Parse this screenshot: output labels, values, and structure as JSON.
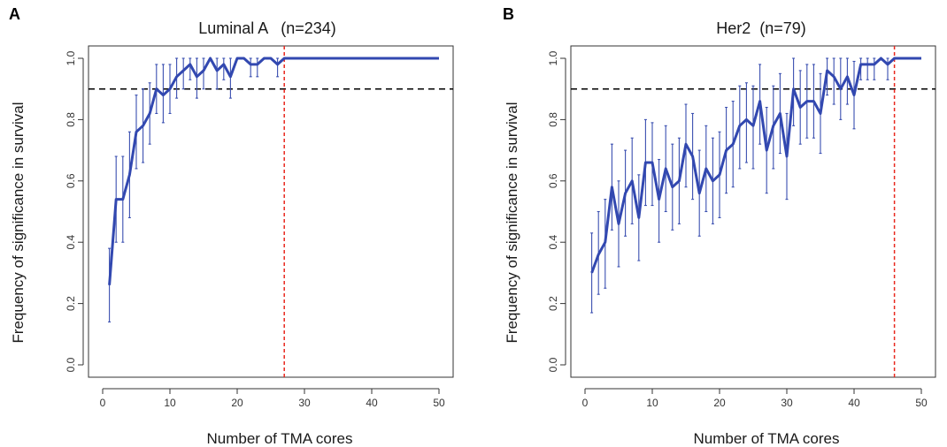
{
  "chart_data": [
    {
      "type": "line",
      "panel_label": "A",
      "title": "Luminal A   (n=234)",
      "xlabel": "Number of TMA cores",
      "ylabel": "Frequency of significance in survival",
      "xlim": [
        0,
        50
      ],
      "ylim": [
        0,
        1.0
      ],
      "xticks": [
        0,
        10,
        20,
        30,
        40,
        50
      ],
      "yticks": [
        "0.0",
        "0.2",
        "0.4",
        "0.6",
        "0.8",
        "1.0"
      ],
      "grid": false,
      "hline": 0.9,
      "vline": 27,
      "line_color": "#3248b0",
      "x": [
        1,
        2,
        3,
        4,
        5,
        6,
        7,
        8,
        9,
        10,
        11,
        12,
        13,
        14,
        15,
        16,
        17,
        18,
        19,
        20,
        21,
        22,
        23,
        24,
        25,
        26,
        27,
        28,
        29,
        30,
        31,
        32,
        33,
        34,
        35,
        36,
        37,
        38,
        39,
        40,
        41,
        42,
        43,
        44,
        45,
        46,
        47,
        48,
        49,
        50
      ],
      "values": [
        0.26,
        0.54,
        0.54,
        0.62,
        0.76,
        0.78,
        0.82,
        0.9,
        0.88,
        0.9,
        0.94,
        0.96,
        0.98,
        0.94,
        0.96,
        1.0,
        0.96,
        0.98,
        0.94,
        1.0,
        1.0,
        0.98,
        0.98,
        1.0,
        1.0,
        0.98,
        1.0,
        1.0,
        1.0,
        1.0,
        1.0,
        1.0,
        1.0,
        1.0,
        1.0,
        1.0,
        1.0,
        1.0,
        1.0,
        1.0,
        1.0,
        1.0,
        1.0,
        1.0,
        1.0,
        1.0,
        1.0,
        1.0,
        1.0,
        1.0
      ],
      "error_bars": [
        [
          1,
          0.14,
          0.38
        ],
        [
          2,
          0.4,
          0.68
        ],
        [
          3,
          0.4,
          0.68
        ],
        [
          4,
          0.48,
          0.76
        ],
        [
          5,
          0.64,
          0.88
        ],
        [
          6,
          0.66,
          0.9
        ],
        [
          7,
          0.72,
          0.92
        ],
        [
          8,
          0.82,
          0.98
        ],
        [
          9,
          0.79,
          0.98
        ],
        [
          10,
          0.82,
          0.98
        ],
        [
          11,
          0.87,
          1.0
        ],
        [
          12,
          0.9,
          1.0
        ],
        [
          13,
          0.93,
          1.0
        ],
        [
          14,
          0.87,
          1.0
        ],
        [
          15,
          0.9,
          1.0
        ],
        [
          17,
          0.9,
          1.0
        ],
        [
          18,
          0.93,
          1.0
        ],
        [
          19,
          0.87,
          1.0
        ],
        [
          22,
          0.94,
          1.0
        ],
        [
          23,
          0.94,
          1.0
        ],
        [
          26,
          0.94,
          1.0
        ]
      ]
    },
    {
      "type": "line",
      "panel_label": "B",
      "title": "Her2  (n=79)",
      "xlabel": "Number of TMA cores",
      "ylabel": "Frequency of significance in survival",
      "xlim": [
        0,
        50
      ],
      "ylim": [
        0,
        1.0
      ],
      "xticks": [
        0,
        10,
        20,
        30,
        40,
        50
      ],
      "yticks": [
        "0.0",
        "0.2",
        "0.4",
        "0.6",
        "0.8",
        "1.0"
      ],
      "grid": false,
      "hline": 0.9,
      "vline": 46,
      "line_color": "#3248b0",
      "x": [
        1,
        2,
        3,
        4,
        5,
        6,
        7,
        8,
        9,
        10,
        11,
        12,
        13,
        14,
        15,
        16,
        17,
        18,
        19,
        20,
        21,
        22,
        23,
        24,
        25,
        26,
        27,
        28,
        29,
        30,
        31,
        32,
        33,
        34,
        35,
        36,
        37,
        38,
        39,
        40,
        41,
        42,
        43,
        44,
        45,
        46,
        47,
        48,
        49,
        50
      ],
      "values": [
        0.3,
        0.36,
        0.4,
        0.58,
        0.46,
        0.56,
        0.6,
        0.48,
        0.66,
        0.66,
        0.54,
        0.64,
        0.58,
        0.6,
        0.72,
        0.68,
        0.56,
        0.64,
        0.6,
        0.62,
        0.7,
        0.72,
        0.78,
        0.8,
        0.78,
        0.86,
        0.7,
        0.78,
        0.82,
        0.68,
        0.9,
        0.84,
        0.86,
        0.86,
        0.82,
        0.96,
        0.94,
        0.9,
        0.94,
        0.88,
        0.98,
        0.98,
        0.98,
        1.0,
        0.98,
        1.0,
        1.0,
        1.0,
        1.0,
        1.0
      ],
      "error_bars": [
        [
          1,
          0.17,
          0.43
        ],
        [
          2,
          0.23,
          0.5
        ],
        [
          3,
          0.25,
          0.54
        ],
        [
          4,
          0.44,
          0.72
        ],
        [
          5,
          0.32,
          0.6
        ],
        [
          6,
          0.42,
          0.7
        ],
        [
          7,
          0.46,
          0.74
        ],
        [
          8,
          0.34,
          0.62
        ],
        [
          9,
          0.52,
          0.8
        ],
        [
          10,
          0.52,
          0.79
        ],
        [
          11,
          0.4,
          0.67
        ],
        [
          12,
          0.5,
          0.78
        ],
        [
          13,
          0.44,
          0.72
        ],
        [
          14,
          0.46,
          0.74
        ],
        [
          15,
          0.58,
          0.85
        ],
        [
          16,
          0.54,
          0.82
        ],
        [
          17,
          0.42,
          0.7
        ],
        [
          18,
          0.5,
          0.78
        ],
        [
          19,
          0.46,
          0.74
        ],
        [
          20,
          0.48,
          0.76
        ],
        [
          21,
          0.56,
          0.84
        ],
        [
          22,
          0.58,
          0.86
        ],
        [
          23,
          0.64,
          0.91
        ],
        [
          24,
          0.66,
          0.92
        ],
        [
          25,
          0.64,
          0.91
        ],
        [
          26,
          0.72,
          0.98
        ],
        [
          27,
          0.56,
          0.84
        ],
        [
          28,
          0.64,
          0.91
        ],
        [
          29,
          0.69,
          0.95
        ],
        [
          30,
          0.54,
          0.82
        ],
        [
          31,
          0.78,
          1.0
        ],
        [
          32,
          0.72,
          0.96
        ],
        [
          33,
          0.74,
          0.98
        ],
        [
          34,
          0.74,
          0.98
        ],
        [
          35,
          0.69,
          0.95
        ],
        [
          36,
          0.88,
          1.0
        ],
        [
          37,
          0.85,
          1.0
        ],
        [
          38,
          0.8,
          1.0
        ],
        [
          39,
          0.85,
          1.0
        ],
        [
          40,
          0.77,
          0.99
        ],
        [
          41,
          0.93,
          1.0
        ],
        [
          42,
          0.93,
          1.0
        ],
        [
          43,
          0.93,
          1.0
        ],
        [
          45,
          0.93,
          1.0
        ]
      ]
    }
  ]
}
